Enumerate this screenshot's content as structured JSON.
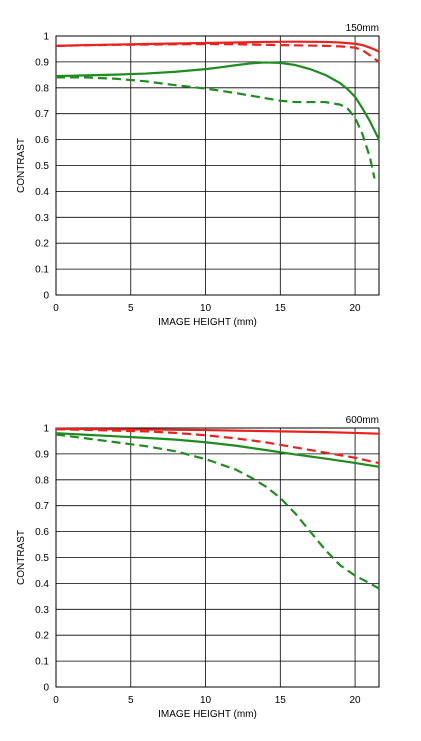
{
  "chart_data": [
    {
      "type": "line",
      "title": "150mm",
      "xlabel": "IMAGE HEIGHT (mm)",
      "ylabel": "CONTRAST",
      "xlim": [
        0,
        21.6
      ],
      "ylim": [
        0,
        1
      ],
      "xticks": [
        0,
        5,
        10,
        15,
        20
      ],
      "xtick_labels": [
        "0",
        "5",
        "10",
        "15",
        "20"
      ],
      "yticks": [
        0,
        0.1,
        0.2,
        0.3,
        0.4,
        0.5,
        0.6,
        0.7,
        0.8,
        0.9,
        1
      ],
      "ytick_labels": [
        "0",
        "0.1",
        "0.2",
        "0.3",
        "0.4",
        "0.5",
        "0.6",
        "0.7",
        "0.8",
        "0.9",
        "1"
      ],
      "grid": true,
      "series": [
        {
          "color": "#e8231d",
          "style": "solid",
          "x": [
            0,
            2,
            4,
            6,
            8,
            10,
            12,
            14,
            16,
            18,
            19,
            20,
            20.5,
            21,
            21.6
          ],
          "y": [
            0.962,
            0.965,
            0.967,
            0.969,
            0.971,
            0.973,
            0.975,
            0.977,
            0.978,
            0.977,
            0.975,
            0.97,
            0.965,
            0.955,
            0.94
          ]
        },
        {
          "color": "#e8231d",
          "style": "dashed",
          "x": [
            0,
            2,
            4,
            6,
            8,
            10,
            12,
            14,
            16,
            18,
            19,
            20,
            20.5,
            21,
            21.6
          ],
          "y": [
            0.962,
            0.964,
            0.966,
            0.967,
            0.968,
            0.969,
            0.968,
            0.966,
            0.964,
            0.962,
            0.96,
            0.955,
            0.945,
            0.925,
            0.9
          ]
        },
        {
          "color": "#1f8c1f",
          "style": "solid",
          "x": [
            0,
            2,
            4,
            6,
            8,
            10,
            11,
            12,
            13,
            14,
            15,
            16,
            17,
            18,
            19,
            19.5,
            20,
            20.5,
            21,
            21.6
          ],
          "y": [
            0.845,
            0.848,
            0.851,
            0.855,
            0.862,
            0.872,
            0.879,
            0.887,
            0.894,
            0.898,
            0.896,
            0.888,
            0.872,
            0.85,
            0.818,
            0.795,
            0.765,
            0.72,
            0.67,
            0.6
          ]
        },
        {
          "color": "#1f8c1f",
          "style": "dashed",
          "x": [
            0,
            2,
            4,
            6,
            8,
            10,
            12,
            14,
            15,
            16,
            17,
            18,
            19,
            19.5,
            20,
            20.5,
            21,
            21.3
          ],
          "y": [
            0.84,
            0.84,
            0.835,
            0.825,
            0.81,
            0.797,
            0.78,
            0.76,
            0.75,
            0.745,
            0.745,
            0.745,
            0.735,
            0.72,
            0.685,
            0.62,
            0.53,
            0.45
          ]
        }
      ]
    },
    {
      "type": "line",
      "title": "600mm",
      "xlabel": "IMAGE HEIGHT (mm)",
      "ylabel": "CONTRAST",
      "xlim": [
        0,
        21.6
      ],
      "ylim": [
        0,
        1
      ],
      "xticks": [
        0,
        5,
        10,
        15,
        20
      ],
      "xtick_labels": [
        "0",
        "5",
        "10",
        "15",
        "20"
      ],
      "yticks": [
        0,
        0.1,
        0.2,
        0.3,
        0.4,
        0.5,
        0.6,
        0.7,
        0.8,
        0.9,
        1
      ],
      "ytick_labels": [
        "0",
        "0.1",
        "0.2",
        "0.3",
        "0.4",
        "0.5",
        "0.6",
        "0.7",
        "0.8",
        "0.9",
        "1"
      ],
      "grid": true,
      "series": [
        {
          "color": "#e8231d",
          "style": "solid",
          "x": [
            0,
            2,
            4,
            6,
            8,
            10,
            12,
            14,
            16,
            18,
            20,
            21.6
          ],
          "y": [
            0.997,
            0.996,
            0.995,
            0.994,
            0.993,
            0.992,
            0.99,
            0.988,
            0.986,
            0.984,
            0.981,
            0.978
          ]
        },
        {
          "color": "#e8231d",
          "style": "dashed",
          "x": [
            0,
            2,
            4,
            6,
            8,
            10,
            12,
            14,
            16,
            18,
            20,
            21,
            21.6
          ],
          "y": [
            0.995,
            0.993,
            0.99,
            0.987,
            0.981,
            0.972,
            0.96,
            0.945,
            0.925,
            0.905,
            0.885,
            0.872,
            0.865
          ]
        },
        {
          "color": "#1f8c1f",
          "style": "solid",
          "x": [
            0,
            2,
            4,
            6,
            8,
            10,
            12,
            14,
            16,
            18,
            20,
            21.6
          ],
          "y": [
            0.98,
            0.974,
            0.968,
            0.962,
            0.955,
            0.945,
            0.932,
            0.915,
            0.898,
            0.882,
            0.865,
            0.85
          ]
        },
        {
          "color": "#1f8c1f",
          "style": "dashed",
          "x": [
            0,
            2,
            4,
            6,
            8,
            10,
            12,
            13,
            14,
            15,
            16,
            17,
            18,
            19,
            20,
            21,
            21.6
          ],
          "y": [
            0.975,
            0.96,
            0.945,
            0.93,
            0.91,
            0.88,
            0.84,
            0.81,
            0.775,
            0.73,
            0.67,
            0.6,
            0.53,
            0.47,
            0.43,
            0.4,
            0.38
          ]
        }
      ]
    }
  ]
}
